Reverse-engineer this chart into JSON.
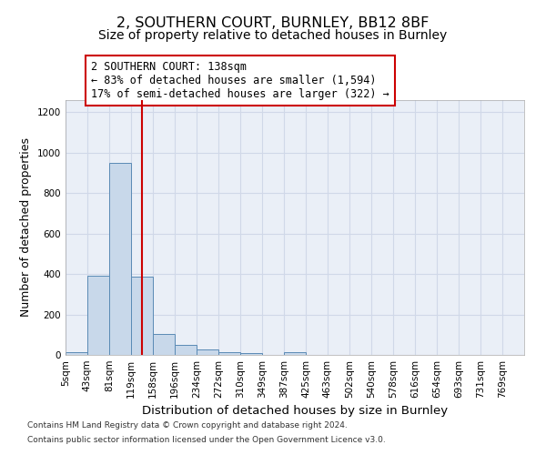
{
  "title": "2, SOUTHERN COURT, BURNLEY, BB12 8BF",
  "subtitle": "Size of property relative to detached houses in Burnley",
  "xlabel": "Distribution of detached houses by size in Burnley",
  "ylabel": "Number of detached properties",
  "footnote1": "Contains HM Land Registry data © Crown copyright and database right 2024.",
  "footnote2": "Contains public sector information licensed under the Open Government Licence v3.0.",
  "annotation_title": "2 SOUTHERN COURT: 138sqm",
  "annotation_line1": "← 83% of detached houses are smaller (1,594)",
  "annotation_line2": "17% of semi-detached houses are larger (322) →",
  "bar_left_edges": [
    5,
    43,
    81,
    119,
    158,
    196,
    234,
    272,
    310,
    349,
    387,
    425,
    463,
    502,
    540,
    578,
    616,
    654,
    693,
    731
  ],
  "bar_heights": [
    15,
    390,
    950,
    385,
    105,
    50,
    25,
    15,
    10,
    0,
    15,
    0,
    0,
    0,
    0,
    0,
    0,
    0,
    0,
    0
  ],
  "bin_width": 38,
  "property_size": 138,
  "bar_color": "#c8d8ea",
  "bar_edge_color": "#5a8ab5",
  "red_line_color": "#cc0000",
  "ylim": [
    0,
    1260
  ],
  "yticks": [
    0,
    200,
    400,
    600,
    800,
    1000,
    1200
  ],
  "x_labels": [
    "5sqm",
    "43sqm",
    "81sqm",
    "119sqm",
    "158sqm",
    "196sqm",
    "234sqm",
    "272sqm",
    "310sqm",
    "349sqm",
    "387sqm",
    "425sqm",
    "463sqm",
    "502sqm",
    "540sqm",
    "578sqm",
    "616sqm",
    "654sqm",
    "693sqm",
    "731sqm",
    "769sqm"
  ],
  "grid_color": "#d0d8e8",
  "background_color": "#eaeff7",
  "title_fontsize": 11.5,
  "subtitle_fontsize": 10,
  "axis_label_fontsize": 9.5,
  "tick_fontsize": 7.5,
  "annotation_fontsize": 8.5,
  "footnote_fontsize": 6.5
}
